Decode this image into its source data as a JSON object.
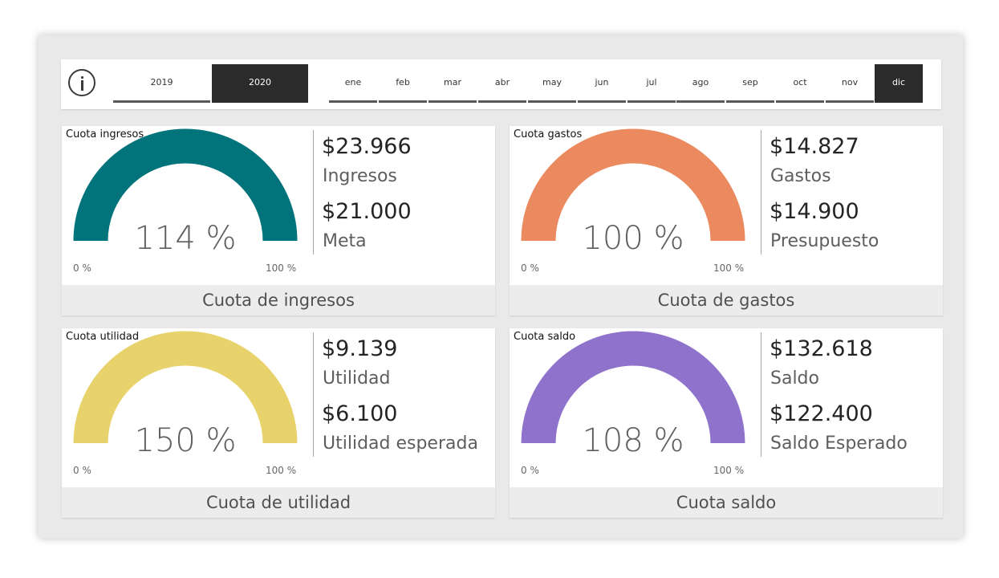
{
  "slicer": {
    "years": [
      {
        "label": "2019",
        "selected": false
      },
      {
        "label": "2020",
        "selected": true
      }
    ],
    "months": [
      {
        "label": "ene",
        "selected": false
      },
      {
        "label": "feb",
        "selected": false
      },
      {
        "label": "mar",
        "selected": false
      },
      {
        "label": "abr",
        "selected": false
      },
      {
        "label": "may",
        "selected": false
      },
      {
        "label": "jun",
        "selected": false
      },
      {
        "label": "jul",
        "selected": false
      },
      {
        "label": "ago",
        "selected": false
      },
      {
        "label": "sep",
        "selected": false
      },
      {
        "label": "oct",
        "selected": false
      },
      {
        "label": "nov",
        "selected": false
      },
      {
        "label": "dic",
        "selected": true
      }
    ],
    "info_icon": "info-icon"
  },
  "cards": [
    {
      "title": "Cuota ingresos",
      "gauge": {
        "value_label": "114 %",
        "value": 114,
        "min_label": "0 %",
        "max_label": "100 %",
        "color": "#00737b"
      },
      "kpi1": {
        "value": "$23.966",
        "label": "Ingresos"
      },
      "kpi2": {
        "value": "$21.000",
        "label": "Meta"
      },
      "footer": "Cuota de ingresos"
    },
    {
      "title": "Cuota gastos",
      "gauge": {
        "value_label": "100 %",
        "value": 100,
        "min_label": "0 %",
        "max_label": "100 %",
        "color": "#eb895f"
      },
      "kpi1": {
        "value": "$14.827",
        "label": "Gastos"
      },
      "kpi2": {
        "value": "$14.900",
        "label": "Presupuesto"
      },
      "footer": "Cuota de gastos"
    },
    {
      "title": "Cuota utilidad",
      "gauge": {
        "value_label": "150 %",
        "value": 150,
        "min_label": "0 %",
        "max_label": "100 %",
        "color": "#e8d26c"
      },
      "kpi1": {
        "value": "$9.139",
        "label": "Utilidad"
      },
      "kpi2": {
        "value": "$6.100",
        "label": "Utilidad esperada"
      },
      "footer": "Cuota de utilidad"
    },
    {
      "title": "Cuota saldo",
      "gauge": {
        "value_label": "108 %",
        "value": 108,
        "min_label": "0 %",
        "max_label": "100 %",
        "color": "#8e72cc"
      },
      "kpi1": {
        "value": "$132.618",
        "label": "Saldo"
      },
      "kpi2": {
        "value": "$122.400",
        "label": "Saldo Esperado"
      },
      "footer": "Cuota saldo"
    }
  ]
}
